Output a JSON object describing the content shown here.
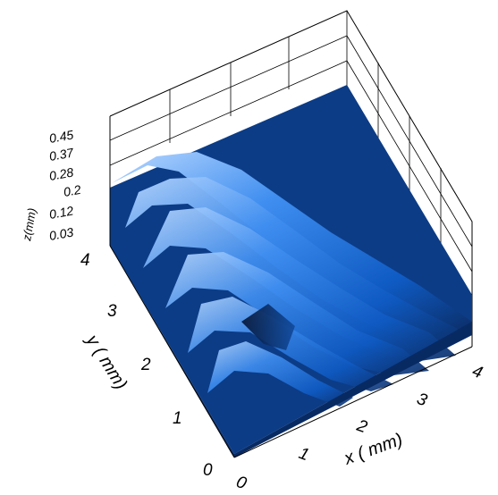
{
  "chart_data": {
    "type": "surface",
    "title": "",
    "xlabel": "x ( mm)",
    "ylabel": "y ( mm)",
    "zlabel": "z(mm)",
    "xlim": [
      0,
      4
    ],
    "ylim": [
      0,
      4
    ],
    "zlim": [
      0.03,
      0.45
    ],
    "x_ticks": [
      "0",
      "1",
      "2",
      "3",
      "4"
    ],
    "y_ticks": [
      "0",
      "1",
      "2",
      "3",
      "4"
    ],
    "z_ticks": [
      "0.03",
      "0.12",
      "0.2",
      "0.28",
      "0.37",
      "0.45"
    ],
    "grid": true,
    "colormap": [
      "#0a1a3a",
      "#0e4fa8",
      "#1e78e0",
      "#66aaf2",
      "#e6f1ff"
    ],
    "surface": {
      "description_values": {
        "ridge_count": 5,
        "ridge_orientation": "diagonal"
      }
    }
  }
}
